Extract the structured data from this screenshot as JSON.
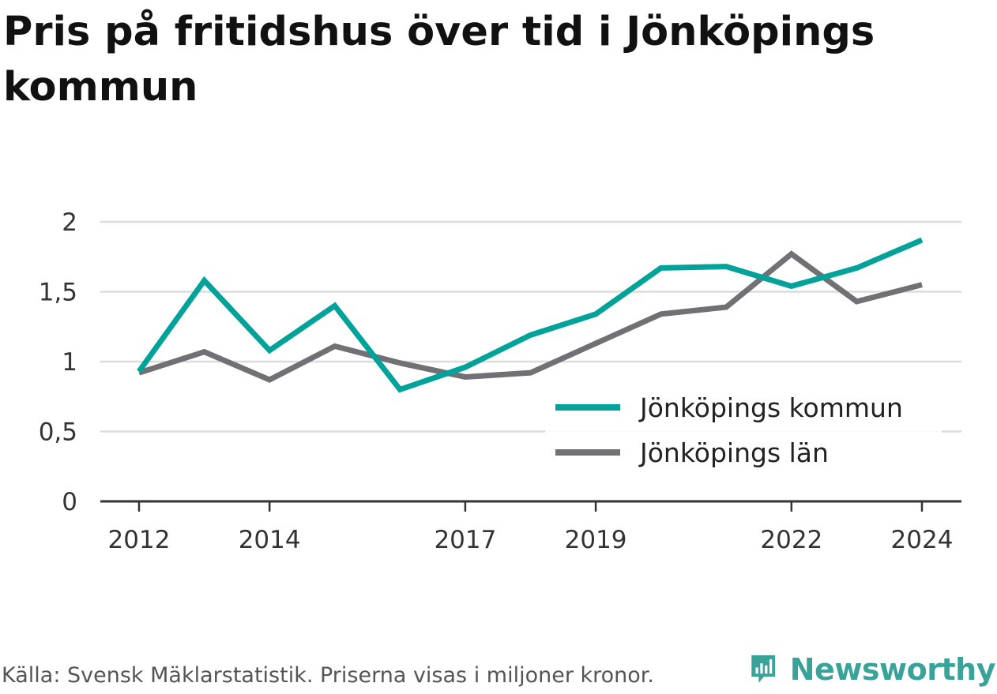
{
  "brand": {
    "name": "Newsworthy",
    "color": "#3aa399",
    "icon": "bar-chart-speech-bubble-icon"
  },
  "footer": {
    "text": "Källa: Svensk Mäklarstatistik. Priserna visas i miljoner kronor."
  },
  "chart_data": {
    "type": "line",
    "title": "Pris på fritidshus över tid i Jönköpings kommun",
    "x": [
      2012,
      2013,
      2014,
      2015,
      2016,
      2017,
      2018,
      2019,
      2020,
      2021,
      2022,
      2023,
      2024
    ],
    "x_ticks": [
      2012,
      2014,
      2017,
      2019,
      2022,
      2024
    ],
    "y_ticks": [
      0,
      0.5,
      1,
      1.5,
      2
    ],
    "y_tick_labels": [
      "0",
      "0,5",
      "1",
      "1,5",
      "2"
    ],
    "ylim": [
      0,
      2
    ],
    "grid": true,
    "legend_position": "right",
    "series": [
      {
        "name": "Jönköpings kommun",
        "color": "#00a29a",
        "values": [
          0.93,
          1.58,
          1.08,
          1.4,
          0.8,
          0.96,
          1.19,
          1.34,
          1.67,
          1.68,
          1.54,
          1.67,
          1.87
        ]
      },
      {
        "name": "Jönköpings län",
        "color": "#717075",
        "values": [
          0.92,
          1.07,
          0.87,
          1.11,
          0.99,
          0.89,
          0.92,
          1.13,
          1.34,
          1.39,
          1.77,
          1.43,
          1.55
        ]
      }
    ]
  }
}
